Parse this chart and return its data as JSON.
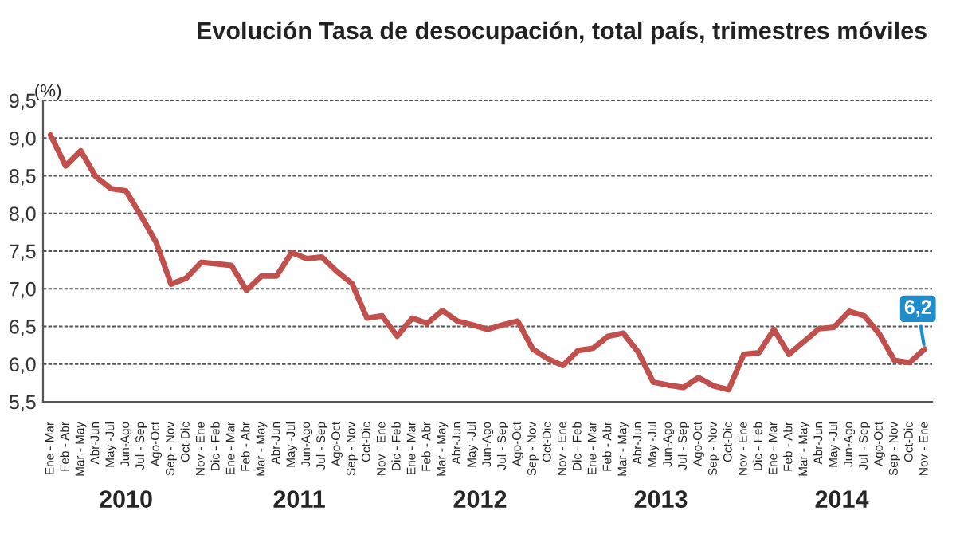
{
  "chart_data": {
    "type": "line",
    "title": "Evolución Tasa de desocupación, total país, trimestres móviles",
    "ylabel": "(%)",
    "categories": [
      "Ene - Mar",
      "Feb - Abr",
      "Mar - May",
      "Abr-Jun",
      "May -Jul",
      "Jun-Ago",
      "Jul - Sep",
      "Ago-Oct",
      "Sep - Nov",
      "Oct-Dic",
      "Nov - Ene",
      "Dic - Feb",
      "Ene - Mar",
      "Feb - Abr",
      "Mar - May",
      "Abr-Jun",
      "May -Jul",
      "Jun-Ago",
      "Jul - Sep",
      "Ago-Oct",
      "Sep - Nov",
      "Oct-Dic",
      "Nov - Ene",
      "Dic - Feb",
      "Ene - Mar",
      "Feb - Abr",
      "Mar - May",
      "Abr-Jun",
      "May -Jul",
      "Jun-Ago",
      "Jul - Sep",
      "Ago-Oct",
      "Sep - Nov",
      "Oct-Dic",
      "Nov - Ene",
      "Dic - Feb",
      "Ene - Mar",
      "Feb - Abr",
      "Mar - May",
      "Abr-Jun",
      "May -Jul",
      "Jun-Ago",
      "Jul - Sep",
      "Ago-Oct",
      "Sep - Nov",
      "Oct-Dic",
      "Nov - Ene",
      "Dic - Feb",
      "Ene - Mar",
      "Feb - Abr",
      "Mar - May",
      "Abr-Jun",
      "May -Jul",
      "Jun-Ago",
      "Jul - Sep",
      "Ago-Oct",
      "Sep - Nov",
      "Oct-Dic",
      "Nov - Ene"
    ],
    "series": [
      {
        "color": "#c1504c",
        "values": [
          9.04,
          8.63,
          8.83,
          8.49,
          8.33,
          8.3,
          7.97,
          7.62,
          7.06,
          7.14,
          7.35,
          7.33,
          7.31,
          6.98,
          7.17,
          7.17,
          7.48,
          7.4,
          7.42,
          7.23,
          7.07,
          6.61,
          6.64,
          6.37,
          6.61,
          6.54,
          6.71,
          6.57,
          6.52,
          6.46,
          6.52,
          6.57,
          6.2,
          6.07,
          5.98,
          6.18,
          6.21,
          6.37,
          6.41,
          6.16,
          5.76,
          5.72,
          5.69,
          5.82,
          5.71,
          5.66,
          6.13,
          6.15,
          6.46,
          6.13,
          6.3,
          6.47,
          6.49,
          6.7,
          6.64,
          6.4,
          6.05,
          6.02,
          6.2
        ],
        "value_labels": [
          null,
          null,
          null,
          null,
          null,
          null,
          null,
          null,
          null,
          null,
          null,
          null,
          null,
          null,
          null,
          null,
          null,
          null,
          null,
          null,
          null,
          null,
          null,
          null,
          null,
          null,
          null,
          null,
          null,
          null,
          null,
          null,
          null,
          null,
          null,
          null,
          null,
          null,
          null,
          null,
          null,
          null,
          null,
          null,
          null,
          null,
          null,
          null,
          null,
          null,
          null,
          null,
          null,
          null,
          null,
          null,
          null,
          null,
          "6,2"
        ]
      }
    ],
    "ylim": [
      5.5,
      9.5
    ],
    "yticks": [
      {
        "value": 5.5,
        "label": "5,5"
      },
      {
        "value": 6.0,
        "label": "6,0"
      },
      {
        "value": 6.5,
        "label": "6,5"
      },
      {
        "value": 7.0,
        "label": "7,0"
      },
      {
        "value": 7.5,
        "label": "7,5"
      },
      {
        "value": 8.0,
        "label": "8,0"
      },
      {
        "value": 8.5,
        "label": "8,5"
      },
      {
        "value": 9.0,
        "label": "9,0"
      },
      {
        "value": 9.5,
        "label": "9,5"
      }
    ],
    "grid": "y",
    "marker": "none",
    "line_style": "solid",
    "legend": false,
    "annotations": [
      "2010",
      "2011",
      "2012",
      "2013",
      "2014"
    ]
  }
}
